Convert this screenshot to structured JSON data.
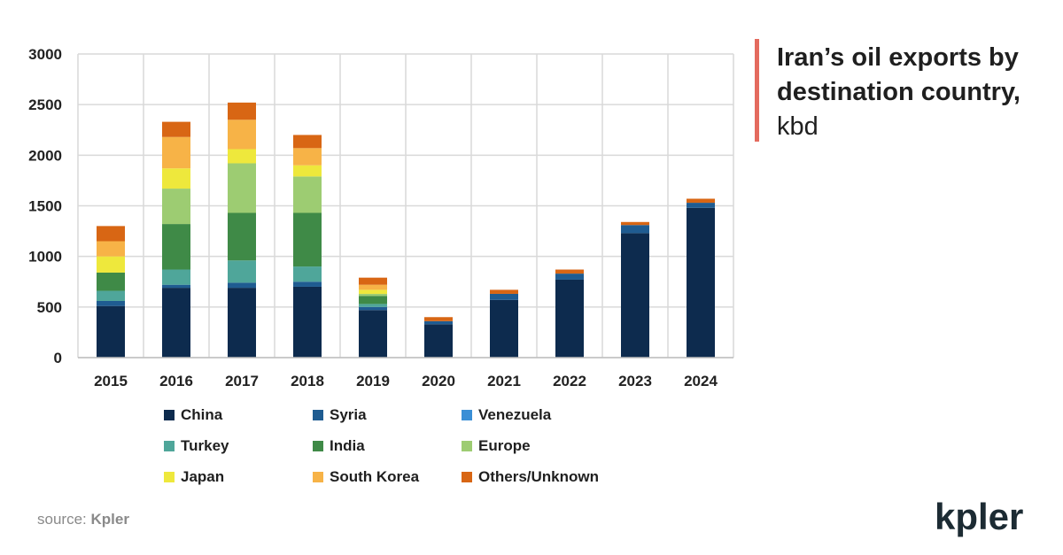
{
  "title": {
    "main": "Iran’s oil exports by destination country,",
    "unit": " kbd",
    "accent_color": "#e46b5e"
  },
  "source": {
    "label": "source: ",
    "name": "Kpler"
  },
  "logo": {
    "text": "kpler"
  },
  "chart_data": {
    "type": "bar",
    "stacked": true,
    "title": "Iran’s oil exports by destination country, kbd",
    "xlabel": "",
    "ylabel": "kbd",
    "ylim": [
      0,
      3000
    ],
    "yticks": [
      0,
      500,
      1000,
      1500,
      2000,
      2500,
      3000
    ],
    "grid": true,
    "legend_position": "bottom",
    "categories": [
      "2015",
      "2016",
      "2017",
      "2018",
      "2019",
      "2020",
      "2021",
      "2022",
      "2023",
      "2024"
    ],
    "series": [
      {
        "name": "China",
        "color": "#0d2b4e",
        "values": [
          510,
          690,
          690,
          700,
          470,
          330,
          570,
          770,
          1230,
          1480
        ]
      },
      {
        "name": "Syria",
        "color": "#1f5c91",
        "values": [
          50,
          30,
          50,
          50,
          30,
          30,
          60,
          60,
          80,
          50
        ]
      },
      {
        "name": "Venezuela",
        "color": "#3a8fd6",
        "values": [
          0,
          0,
          0,
          0,
          0,
          0,
          0,
          0,
          0,
          0
        ]
      },
      {
        "name": "Turkey",
        "color": "#4fa69a",
        "values": [
          100,
          150,
          220,
          150,
          30,
          0,
          0,
          0,
          0,
          0
        ]
      },
      {
        "name": "India",
        "color": "#3f8a47",
        "values": [
          180,
          450,
          470,
          530,
          80,
          0,
          0,
          0,
          0,
          0
        ]
      },
      {
        "name": "Europe",
        "color": "#9dcc72",
        "values": [
          0,
          350,
          490,
          360,
          20,
          0,
          0,
          0,
          0,
          0
        ]
      },
      {
        "name": "Japan",
        "color": "#eee83c",
        "values": [
          160,
          200,
          140,
          110,
          40,
          0,
          0,
          0,
          0,
          0
        ]
      },
      {
        "name": "South Korea",
        "color": "#f7b347",
        "values": [
          150,
          310,
          290,
          170,
          50,
          0,
          0,
          0,
          0,
          0
        ]
      },
      {
        "name": "Others/Unknown",
        "color": "#d86614",
        "values": [
          150,
          150,
          170,
          130,
          70,
          40,
          40,
          40,
          30,
          40
        ]
      }
    ]
  }
}
